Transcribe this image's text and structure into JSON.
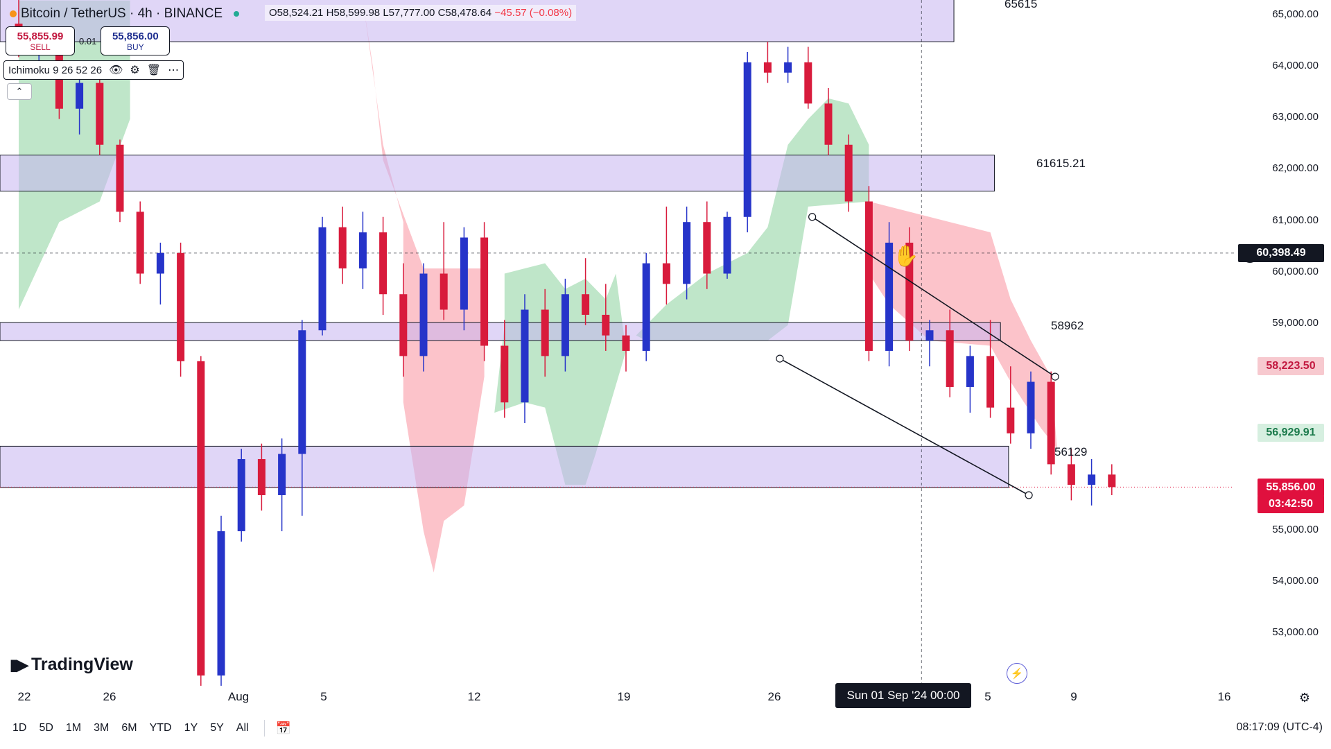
{
  "header": {
    "symbol": "Bitcoin / TetherUS · 4h · BINANCE",
    "ohlc": {
      "open": "O58,524.21",
      "high": "H58,599.98",
      "low": "L57,777.00",
      "close": "C58,478.64",
      "change": "−45.57 (−0.08%)"
    }
  },
  "trade": {
    "sell_price": "55,855.99",
    "sell_label": "SELL",
    "spread": "0.01",
    "buy_price": "55,856.00",
    "buy_label": "BUY"
  },
  "indicator": {
    "label": "Ichimoku 9 26 52 26",
    "icons": [
      "eye-icon",
      "gear-icon",
      "trash-icon",
      "more-icon"
    ]
  },
  "brand": "TradingView",
  "crosshair": {
    "date_label": "Sun 01 Sep '24   00:00",
    "price_label": "60,398.49"
  },
  "price_tags": [
    {
      "label": "58,223.50",
      "bg": "#f7c9cf",
      "fg": "#c2183f"
    },
    {
      "label": "56,929.91",
      "bg": "#d6efe0",
      "fg": "#1b7a4b"
    },
    {
      "label": "55,856.00",
      "bg": "#e0103e",
      "fg": "#ffffff"
    },
    {
      "label": "03:42:50",
      "bg": "#e0103e",
      "fg": "#ffffff"
    }
  ],
  "zone_labels": [
    "65615",
    "61615.21",
    "58962",
    "56129"
  ],
  "time_ranges": [
    "1D",
    "5D",
    "1M",
    "3M",
    "6M",
    "YTD",
    "1Y",
    "5Y",
    "All"
  ],
  "clock": "08:17:09 (UTC-4)",
  "colors": {
    "up": "#2634c9",
    "down": "#d81b3c",
    "zone": "#c6b5f0",
    "cloud_bull": "#b4e2c0",
    "cloud_bear": "#fbb9c1"
  },
  "chart_data": {
    "type": "candlestick",
    "title": "Bitcoin / TetherUS · 4h · BINANCE",
    "y_ticks": [
      65000,
      64000,
      63000,
      62000,
      61000,
      60000,
      59000,
      55000,
      54000,
      53000
    ],
    "y_tick_labels": [
      "65,000.00",
      "64,000.00",
      "63,000.00",
      "62,000.00",
      "61,000.00",
      "60,000.00",
      "59,000.00",
      "55,000.00",
      "54,000.00",
      "53,000.00"
    ],
    "ylim": [
      52000,
      65300
    ],
    "x_tick_labels": [
      "22",
      "26",
      "Aug",
      "5",
      "12",
      "19",
      "26",
      "5",
      "9",
      "16"
    ],
    "xlim": [
      0,
      61
    ],
    "x_tick_positions": [
      0.9,
      5,
      11,
      15,
      22,
      29,
      36,
      46,
      50,
      57
    ],
    "zones": [
      {
        "low": 64500,
        "high": 65400,
        "label": "65615",
        "x_end": 46.2
      },
      {
        "low": 61600,
        "high": 62300,
        "label": "61615.21",
        "x_end": 48.2
      },
      {
        "low": 58700,
        "high": 59050,
        "label": "58962",
        "x_end": 48.5
      },
      {
        "low": 55850,
        "high": 56650,
        "label": "56129",
        "x_end": 48.9
      }
    ],
    "trendlines": [
      {
        "x1": 39.2,
        "y1": 61100,
        "x2": 51.2,
        "y2": 58000
      },
      {
        "x1": 37.6,
        "y1": 58350,
        "x2": 49.9,
        "y2": 55700
      }
    ],
    "cloud": [
      {
        "color": "bull",
        "points": [
          [
            0,
            59300
          ],
          [
            2,
            61000
          ],
          [
            4,
            61400
          ],
          [
            5.5,
            63000
          ],
          [
            5.5,
            65300
          ],
          [
            0,
            65300
          ]
        ]
      },
      {
        "color": "bear",
        "points": [
          [
            17,
            65300
          ],
          [
            18,
            62500
          ],
          [
            19,
            61000
          ],
          [
            19,
            59000
          ],
          [
            19,
            57500
          ],
          [
            20,
            55000
          ],
          [
            20.5,
            54200
          ],
          [
            21,
            55200
          ],
          [
            22,
            55500
          ],
          [
            23,
            58000
          ],
          [
            23,
            60100
          ],
          [
            20,
            60100
          ],
          [
            18,
            62200
          ],
          [
            17.5,
            64000
          ]
        ]
      },
      {
        "color": "bull",
        "points": [
          [
            23.5,
            57300
          ],
          [
            24,
            59000
          ],
          [
            24,
            60000
          ],
          [
            26,
            60200
          ],
          [
            27,
            59700
          ],
          [
            28,
            59900
          ],
          [
            29,
            59500
          ],
          [
            29.5,
            60000
          ],
          [
            30,
            58500
          ],
          [
            28.5,
            56500
          ],
          [
            28,
            55900
          ],
          [
            27,
            55900
          ],
          [
            26,
            57400
          ],
          [
            25,
            57500
          ]
        ]
      },
      {
        "color": "bull",
        "points": [
          [
            30.5,
            58800
          ],
          [
            32,
            59400
          ],
          [
            34,
            60000
          ],
          [
            36,
            60400
          ],
          [
            37,
            60900
          ],
          [
            38,
            62500
          ],
          [
            39,
            63000
          ],
          [
            40,
            63400
          ],
          [
            41,
            63300
          ],
          [
            42,
            62500
          ],
          [
            42,
            61400
          ],
          [
            39,
            61300
          ],
          [
            38,
            59000
          ],
          [
            37,
            58700
          ],
          [
            34,
            58700
          ],
          [
            31,
            58700
          ]
        ]
      },
      {
        "color": "bear",
        "points": [
          [
            42,
            61400
          ],
          [
            44,
            61200
          ],
          [
            46,
            61000
          ],
          [
            48,
            60800
          ],
          [
            49,
            59500
          ],
          [
            50,
            58700
          ],
          [
            51,
            58000
          ],
          [
            51.3,
            56600
          ],
          [
            50.5,
            57000
          ],
          [
            49,
            57900
          ],
          [
            48,
            58600
          ],
          [
            45,
            58700
          ],
          [
            43,
            59400
          ],
          [
            42,
            60000
          ]
        ]
      }
    ],
    "candles": [
      [
        0,
        64850,
        65400,
        64200,
        64400
      ],
      [
        1,
        64400,
        64800,
        63800,
        64600
      ],
      [
        2,
        64600,
        64700,
        63000,
        63200
      ],
      [
        3,
        63200,
        63900,
        62700,
        63700
      ],
      [
        4,
        63700,
        64100,
        62300,
        62500
      ],
      [
        5,
        62500,
        62600,
        61000,
        61200
      ],
      [
        6,
        61200,
        61400,
        59800,
        60000
      ],
      [
        7,
        60000,
        60600,
        59400,
        60400
      ],
      [
        8,
        60400,
        60600,
        58000,
        58300
      ],
      [
        9,
        58300,
        58400,
        52000,
        52200
      ],
      [
        10,
        52200,
        55300,
        52000,
        55000
      ],
      [
        11,
        55000,
        56600,
        54800,
        56400
      ],
      [
        12,
        56400,
        56700,
        55400,
        55700
      ],
      [
        13,
        55700,
        56800,
        55000,
        56500
      ],
      [
        14,
        56500,
        59100,
        55300,
        58900
      ],
      [
        15,
        58900,
        61100,
        58800,
        60900
      ],
      [
        16,
        60900,
        61300,
        59800,
        60100
      ],
      [
        17,
        60100,
        61200,
        59700,
        60800
      ],
      [
        18,
        60800,
        61100,
        59200,
        59600
      ],
      [
        19,
        59600,
        60200,
        58000,
        58400
      ],
      [
        20,
        58400,
        60200,
        58100,
        60000
      ],
      [
        21,
        60000,
        61000,
        59100,
        59300
      ],
      [
        22,
        59300,
        60900,
        58900,
        60700
      ],
      [
        23,
        60700,
        61000,
        58300,
        58600
      ],
      [
        24,
        58600,
        59100,
        57200,
        57500
      ],
      [
        25,
        57500,
        59600,
        57100,
        59300
      ],
      [
        26,
        59300,
        59700,
        58000,
        58400
      ],
      [
        27,
        58400,
        59900,
        58100,
        59600
      ],
      [
        28,
        59600,
        60300,
        59000,
        59200
      ],
      [
        29,
        59200,
        59800,
        58500,
        58800
      ],
      [
        30,
        58800,
        59000,
        58100,
        58500
      ],
      [
        31,
        58500,
        60400,
        58300,
        60200
      ],
      [
        32,
        60200,
        61300,
        59400,
        59800
      ],
      [
        33,
        59800,
        61300,
        59500,
        61000
      ],
      [
        34,
        61000,
        61400,
        59700,
        60000
      ],
      [
        35,
        60000,
        61200,
        59900,
        61100
      ],
      [
        36,
        61100,
        64300,
        60800,
        64100
      ],
      [
        37,
        64100,
        64500,
        63700,
        63900
      ],
      [
        38,
        63900,
        64400,
        63700,
        64100
      ],
      [
        39,
        64100,
        64400,
        63200,
        63300
      ],
      [
        40,
        63300,
        63600,
        62300,
        62500
      ],
      [
        41,
        62500,
        62700,
        61200,
        61400
      ],
      [
        42,
        61400,
        61700,
        58300,
        58500
      ],
      [
        43,
        58500,
        61000,
        58200,
        60600
      ],
      [
        44,
        60600,
        60900,
        58500,
        58700
      ],
      [
        45,
        58700,
        59100,
        58200,
        58900
      ],
      [
        46,
        58900,
        59300,
        57600,
        57800
      ],
      [
        47,
        57800,
        58600,
        57300,
        58400
      ],
      [
        48,
        58400,
        59100,
        57200,
        57400
      ],
      [
        49,
        57400,
        58200,
        56700,
        56900
      ],
      [
        50,
        56900,
        58100,
        56600,
        57900
      ],
      [
        51,
        57900,
        58100,
        56100,
        56300
      ],
      [
        52,
        56300,
        56600,
        55600,
        55900
      ],
      [
        53,
        55900,
        56400,
        55500,
        56100
      ],
      [
        54,
        56100,
        56300,
        55700,
        55856
      ]
    ]
  }
}
